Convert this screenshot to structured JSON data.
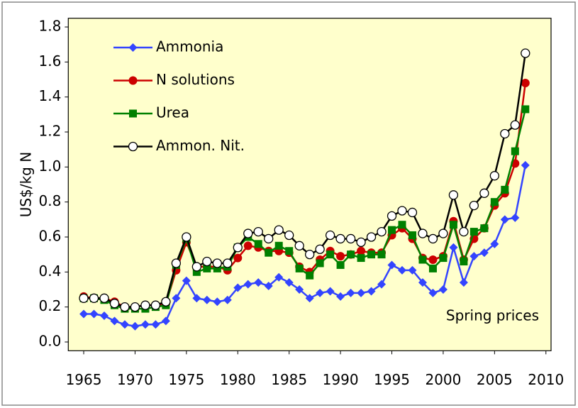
{
  "chart_data": {
    "type": "line",
    "y_label": "US$/kg N",
    "annotation": "Spring prices",
    "x": [
      1965,
      1966,
      1967,
      1968,
      1969,
      1970,
      1971,
      1972,
      1973,
      1974,
      1975,
      1976,
      1977,
      1978,
      1979,
      1980,
      1981,
      1982,
      1983,
      1984,
      1985,
      1986,
      1987,
      1988,
      1989,
      1990,
      1991,
      1992,
      1993,
      1994,
      1995,
      1996,
      1997,
      1998,
      1999,
      2000,
      2001,
      2002,
      2003,
      2004,
      2005,
      2006,
      2007,
      2008
    ],
    "series": [
      {
        "name": "Ammonia",
        "color": "#3344ff",
        "marker": "diamond",
        "values": [
          0.16,
          0.16,
          0.15,
          0.12,
          0.1,
          0.09,
          0.1,
          0.1,
          0.12,
          0.25,
          0.35,
          0.25,
          0.24,
          0.23,
          0.24,
          0.31,
          0.33,
          0.34,
          0.32,
          0.37,
          0.34,
          0.3,
          0.25,
          0.28,
          0.29,
          0.26,
          0.28,
          0.28,
          0.29,
          0.33,
          0.44,
          0.41,
          0.41,
          0.34,
          0.28,
          0.3,
          0.54,
          0.34,
          0.49,
          0.51,
          0.56,
          0.7,
          0.71,
          1.01
        ]
      },
      {
        "name": "N solutions",
        "color": "#cc0000",
        "marker": "circle",
        "values": [
          0.26,
          0.25,
          0.25,
          0.23,
          0.2,
          0.2,
          0.21,
          0.21,
          0.22,
          0.41,
          0.57,
          0.43,
          0.43,
          0.43,
          0.41,
          0.48,
          0.55,
          0.54,
          0.52,
          0.52,
          0.51,
          0.43,
          0.4,
          0.47,
          0.52,
          0.49,
          0.5,
          0.52,
          0.51,
          0.51,
          0.61,
          0.65,
          0.59,
          0.48,
          0.47,
          0.49,
          0.69,
          0.47,
          0.59,
          0.65,
          0.78,
          0.85,
          1.02,
          1.48
        ]
      },
      {
        "name": "Urea",
        "color": "#008000",
        "marker": "square",
        "values": [
          0.25,
          0.25,
          0.24,
          0.21,
          0.19,
          0.19,
          0.19,
          0.2,
          0.21,
          0.44,
          0.59,
          0.4,
          0.42,
          0.42,
          0.43,
          0.54,
          0.6,
          0.56,
          0.51,
          0.55,
          0.52,
          0.42,
          0.38,
          0.45,
          0.5,
          0.44,
          0.5,
          0.48,
          0.5,
          0.5,
          0.64,
          0.67,
          0.61,
          0.47,
          0.42,
          0.48,
          0.67,
          0.46,
          0.63,
          0.65,
          0.8,
          0.87,
          1.09,
          1.33
        ]
      },
      {
        "name": "Ammon. Nit.",
        "color": "#000000",
        "marker": "open-circle",
        "values": [
          0.25,
          0.25,
          0.25,
          0.22,
          0.2,
          0.2,
          0.21,
          0.21,
          0.23,
          0.45,
          0.6,
          0.43,
          0.46,
          0.45,
          0.45,
          0.54,
          0.62,
          0.63,
          0.59,
          0.64,
          0.61,
          0.55,
          0.5,
          0.53,
          0.61,
          0.59,
          0.59,
          0.57,
          0.6,
          0.63,
          0.72,
          0.75,
          0.74,
          0.62,
          0.59,
          0.62,
          0.84,
          0.63,
          0.78,
          0.85,
          0.95,
          1.19,
          1.24,
          1.65
        ]
      }
    ],
    "xlim": [
      1963.5,
      2010.5
    ],
    "xticks": [
      1965,
      1970,
      1975,
      1980,
      1985,
      1990,
      1995,
      2000,
      2005,
      2010
    ],
    "ylim": [
      -0.05,
      1.85
    ],
    "yticks": [
      {
        "value": 0,
        "label": "0.0"
      },
      0.2,
      0.4,
      0.6,
      0.8,
      {
        "value": 1,
        "label": "1.0"
      },
      1.2,
      1.4,
      1.6,
      1.8
    ],
    "grid": false,
    "legend": "top-left",
    "plot_background": "#ffffcc"
  }
}
